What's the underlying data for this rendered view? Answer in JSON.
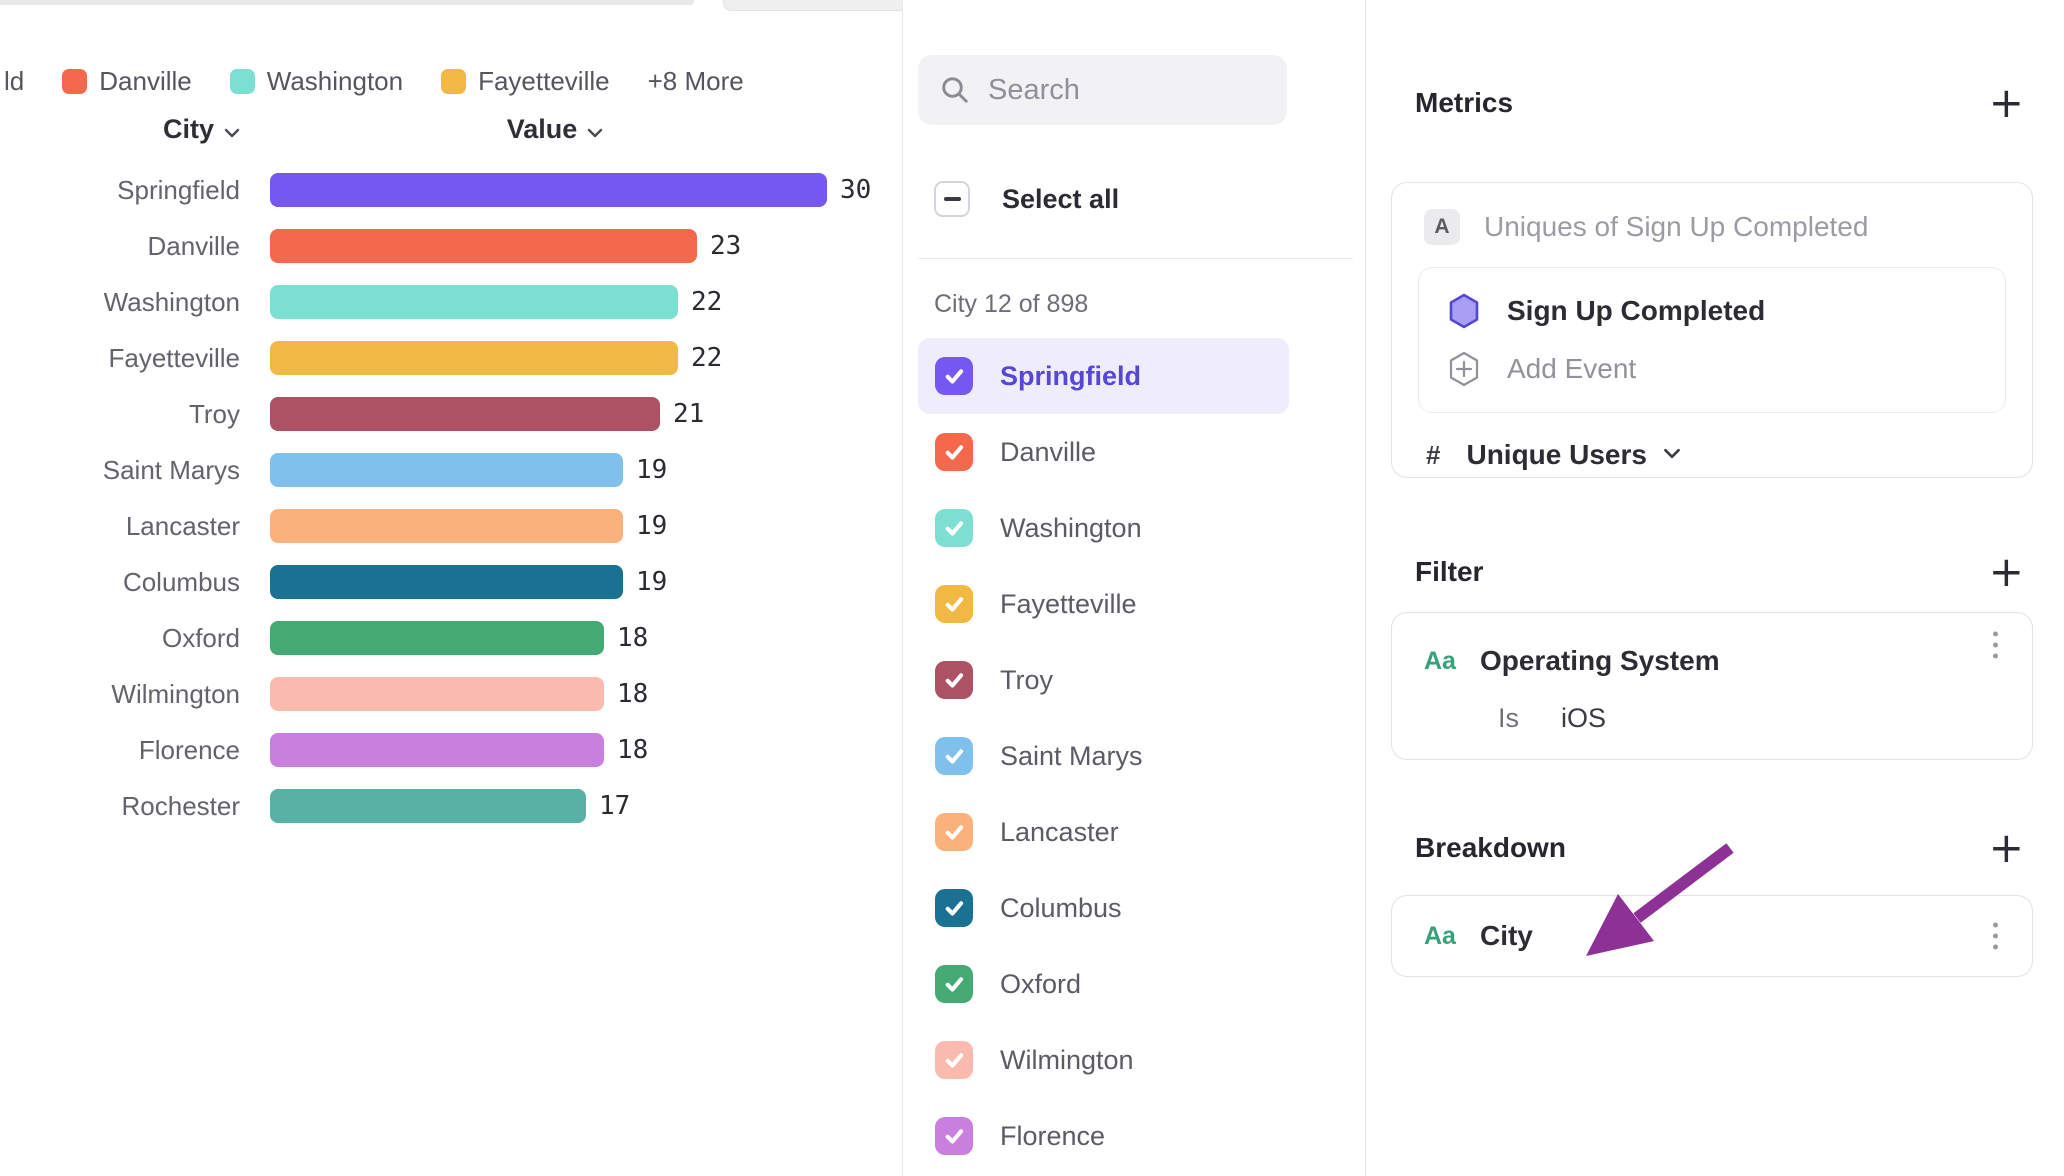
{
  "legend": {
    "partial_label": "ld",
    "items": [
      {
        "label": "Danville",
        "color": "#f4694b"
      },
      {
        "label": "Washington",
        "color": "#7cdfd2"
      },
      {
        "label": "Fayetteville",
        "color": "#f2b844"
      }
    ],
    "more_label": "+8 More"
  },
  "chart_data": {
    "type": "bar",
    "orientation": "horizontal",
    "col_city": "City",
    "col_value": "Value",
    "xmax": 30,
    "rows": [
      {
        "name": "Springfield",
        "value": 30,
        "color": "#7557f2"
      },
      {
        "name": "Danville",
        "value": 23,
        "color": "#f4694b"
      },
      {
        "name": "Washington",
        "value": 22,
        "color": "#7cdfd2"
      },
      {
        "name": "Fayetteville",
        "value": 22,
        "color": "#f2b844"
      },
      {
        "name": "Troy",
        "value": 21,
        "color": "#ad5164"
      },
      {
        "name": "Saint Marys",
        "value": 19,
        "color": "#7fc0ed"
      },
      {
        "name": "Lancaster",
        "value": 19,
        "color": "#fab17b"
      },
      {
        "name": "Columbus",
        "value": 19,
        "color": "#1a7191"
      },
      {
        "name": "Oxford",
        "value": 18,
        "color": "#44a973"
      },
      {
        "name": "Wilmington",
        "value": 18,
        "color": "#fabbae"
      },
      {
        "name": "Florence",
        "value": 18,
        "color": "#c87fde"
      },
      {
        "name": "Rochester",
        "value": 17,
        "color": "#57b1a5"
      }
    ]
  },
  "list": {
    "search_placeholder": "Search",
    "select_all": "Select all",
    "group_label": "City 12 of 898",
    "active_city": "Springfield"
  },
  "metrics": {
    "title": "Metrics",
    "badge": "A",
    "summary": "Uniques of Sign Up Completed",
    "event": "Sign Up Completed",
    "add_event": "Add Event",
    "hash": "#",
    "measure": "Unique Users"
  },
  "filter": {
    "title": "Filter",
    "type_icon": "Aa",
    "property": "Operating System",
    "operator": "Is",
    "value": "iOS"
  },
  "breakdown": {
    "title": "Breakdown",
    "type_icon": "Aa",
    "property": "City",
    "arrow_color": "#8e3196"
  }
}
